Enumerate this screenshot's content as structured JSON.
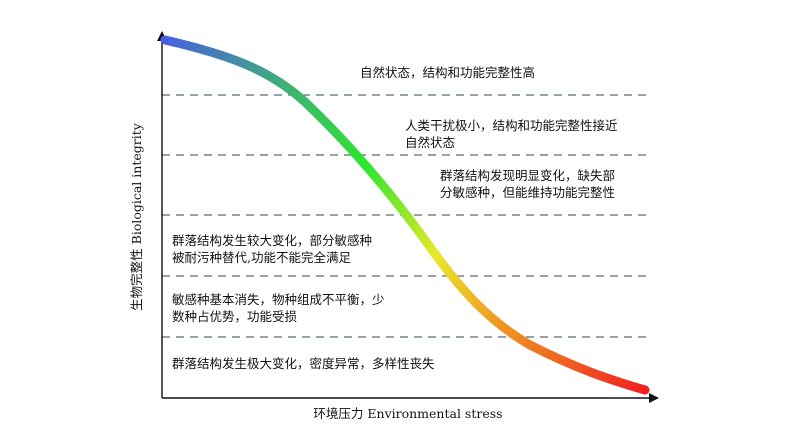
{
  "axes": {
    "x_label": "环境压力 Environmental stress",
    "y_label": "生物完整性 Biological integrity"
  },
  "curve": {
    "gradient_colors": [
      "#4a5fe0",
      "#3fae7a",
      "#2ee62e",
      "#e8e82a",
      "#f0a020",
      "#f02020"
    ]
  },
  "zones": [
    {
      "lines": [
        "自然状态，结构和功能完整性高"
      ]
    },
    {
      "lines": [
        "人类干扰极小，结构和功能完整性接近",
        "自然状态"
      ]
    },
    {
      "lines": [
        "群落结构发现明显变化，缺失部",
        "分敏感种，但能维持功能完整性"
      ]
    },
    {
      "lines": [
        "群落结构发生较大变化，部分敏感种",
        "被耐污种替代,功能不能完全满足"
      ]
    },
    {
      "lines": [
        "敏感种基本消失，物种组成不平衡，少",
        "数种占优势，功能受损"
      ]
    },
    {
      "lines": [
        "群落结构发生极大变化，密度异常，多样性丧失"
      ]
    }
  ]
}
